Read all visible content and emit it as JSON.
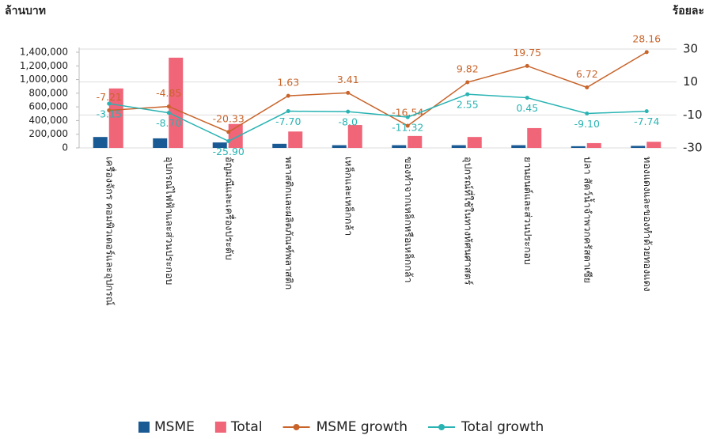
{
  "chart_data": {
    "type": "bar_line",
    "y_axis_label": "ล้านบาท",
    "y2_axis_label": "ร้อยละ",
    "categories": [
      "เครื่องจักร คอมพิวเตอร์และอุปกรณ์",
      "อุปกรณ์ไฟฟ้าและส่วนประกอบ",
      "อัญมณีและเครื่องประดับ",
      "พลาสติกและผลิตภัณฑ์พลาสติก",
      "เหล็กและเหล็กกล้า",
      "ของทำจากเหล็กหรือเหล็กกล้า",
      "อุปกรณ์ที่ใช้ในทางทัศนศาสตร์",
      "ยานยนต์และส่วนประกอบ",
      "ปลา สัตว์น้ำจำพวกครัสตาเซีย",
      "ทองแดงและของทำด้วยทองแดง"
    ],
    "series": [
      {
        "name": "MSME",
        "color": "#1a5a94",
        "kind": "bar",
        "values": [
          160000,
          140000,
          80000,
          60000,
          40000,
          40000,
          40000,
          40000,
          25000,
          30000
        ]
      },
      {
        "name": "Total",
        "color": "#f06578",
        "kind": "bar",
        "values": [
          870000,
          1320000,
          350000,
          240000,
          335000,
          175000,
          160000,
          290000,
          70000,
          90000
        ]
      },
      {
        "name": "MSME growth",
        "color": "#c8642a",
        "kind": "line",
        "axis": "y2",
        "values": [
          -7.21,
          -4.85,
          -20.33,
          1.63,
          3.41,
          -16.54,
          9.82,
          19.75,
          6.72,
          28.16
        ]
      },
      {
        "name": "Total growth",
        "color": "#2ab3b3",
        "kind": "line",
        "axis": "y2",
        "values": [
          -3.15,
          -8.7,
          -25.9,
          -7.7,
          -8.0,
          -11.32,
          2.55,
          0.45,
          -9.1,
          -7.74
        ],
        "value_labels": [
          "-3.15",
          "-8.70",
          "-25.90",
          "-7.70",
          "-8.0",
          "-11.32",
          "2.55",
          "0.45",
          "-9.10",
          "-7.74"
        ]
      }
    ],
    "ylim": [
      0,
      1400000
    ],
    "yticks": [
      0,
      {
        "value": 200000,
        "label": "200,000"
      },
      {
        "value": 400000,
        "label": "400,000"
      },
      {
        "value": 600000,
        "label": "600,000"
      },
      {
        "value": 800000,
        "label": "800,000"
      },
      {
        "value": 1000000,
        "label": "1,000,000"
      },
      {
        "value": 1200000,
        "label": "1,200,000"
      },
      {
        "value": 1400000,
        "label": "1,400,000"
      }
    ],
    "y2lim": [
      -30,
      30
    ],
    "y2ticks": [
      -30,
      -10,
      10,
      30
    ],
    "grid": true
  }
}
